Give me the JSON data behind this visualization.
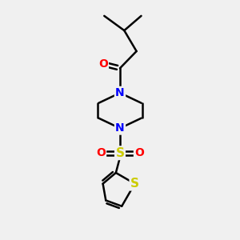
{
  "background_color": "#f0f0f0",
  "bond_color": "#000000",
  "nitrogen_color": "#0000ff",
  "oxygen_color": "#ff0000",
  "sulfur_sulfonyl_color": "#cccc00",
  "sulfur_thiophene_color": "#cccc00",
  "line_width": 1.8,
  "figsize": [
    3.0,
    3.0
  ],
  "dpi": 100,
  "xlim": [
    0,
    10
  ],
  "ylim": [
    0,
    10
  ]
}
